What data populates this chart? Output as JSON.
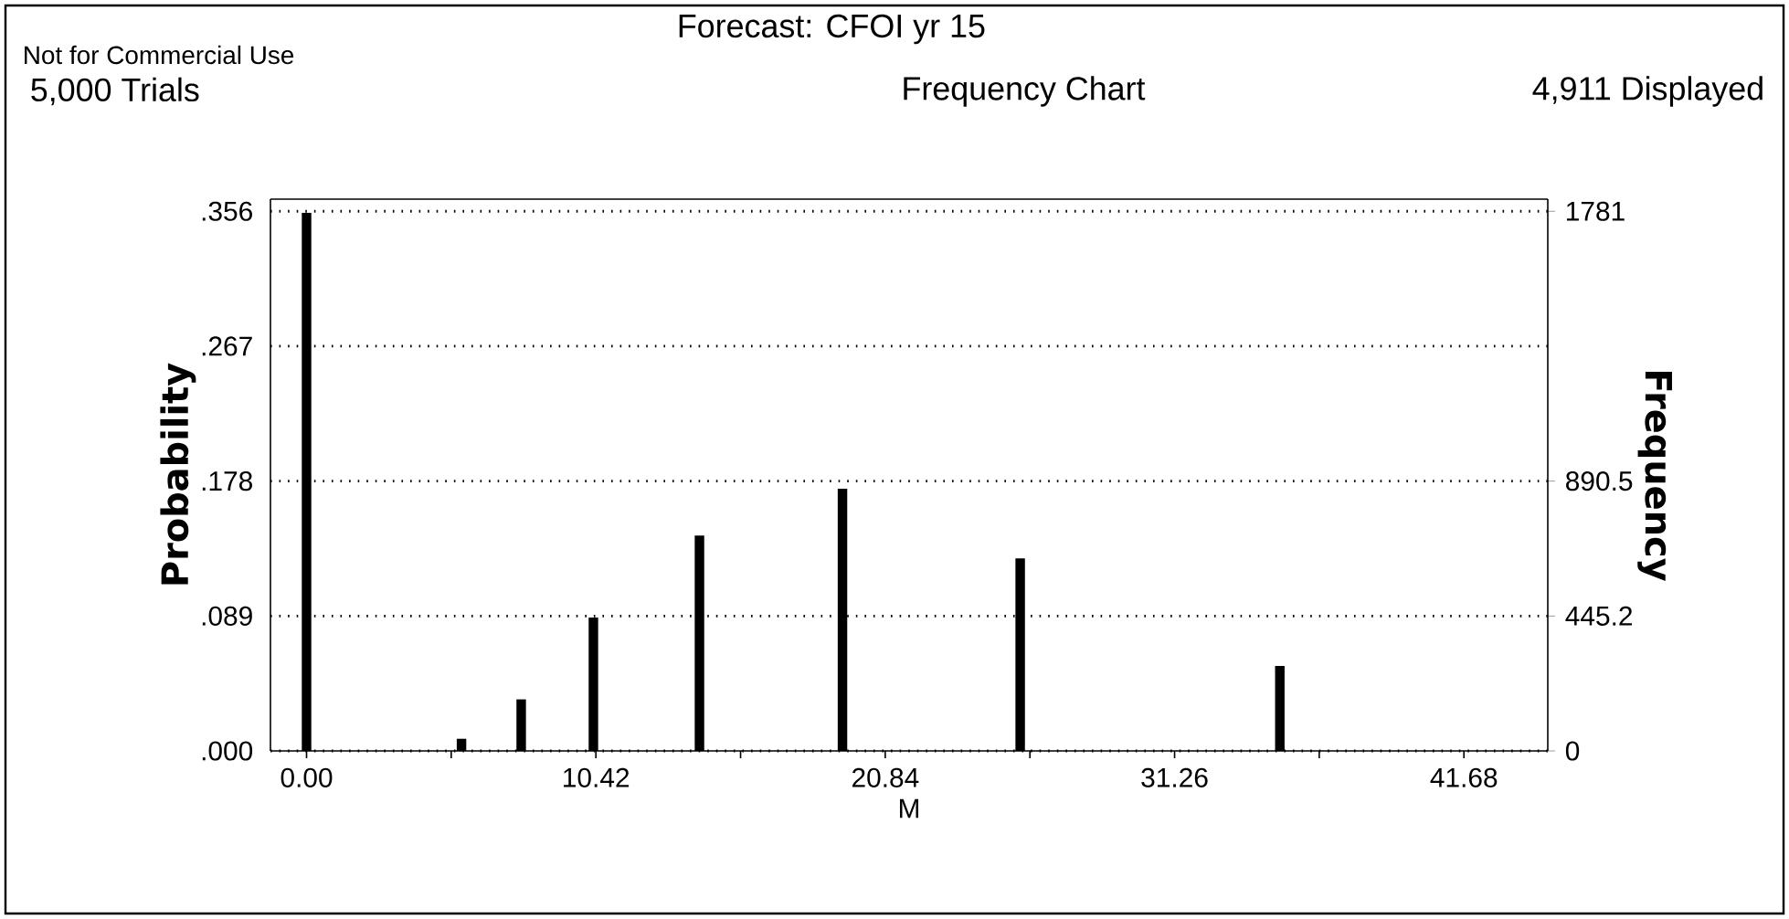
{
  "chart_data": {
    "type": "bar",
    "title": "Forecast: CFOI yr 15",
    "subtitle": "Frequency Chart",
    "xlabel": "M",
    "ylabel": "Probability",
    "y2label": "Frequency",
    "annotations": [
      "Not for Commercial Use",
      "5,000 Trials",
      "4,911 Displayed"
    ],
    "x": [
      0,
      5.58,
      7.73,
      10.33,
      14.15,
      19.3,
      25.7,
      35.05
    ],
    "values": [
      0.355,
      0.008,
      0.034,
      0.088,
      0.142,
      0.173,
      0.127,
      0.056
    ],
    "color": "#000000",
    "xlim": [
      -1.3,
      44.7
    ],
    "ylim": [
      0,
      0.364
    ],
    "y2lim": [
      0,
      1821
    ],
    "xticks": [
      {
        "value": 0,
        "label": "0.00"
      },
      {
        "value": 5.21,
        "label": null
      },
      {
        "value": 10.42,
        "label": "10.42"
      },
      {
        "value": 15.63,
        "label": null
      },
      {
        "value": 20.84,
        "label": "20.84"
      },
      {
        "value": 26.05,
        "label": null
      },
      {
        "value": 31.26,
        "label": "31.26"
      },
      {
        "value": 36.47,
        "label": null
      },
      {
        "value": 41.68,
        "label": "41.68"
      }
    ],
    "yticks": [
      {
        "value": 0,
        "label": ".000"
      },
      {
        "value": 0.089,
        "label": ".089"
      },
      {
        "value": 0.178,
        "label": ".178"
      },
      {
        "value": 0.267,
        "label": ".267"
      },
      {
        "value": 0.356,
        "label": ".356"
      }
    ],
    "y2ticks": [
      0,
      445.2,
      890.5,
      1781
    ],
    "grid": "y",
    "line_style": "dotted"
  }
}
